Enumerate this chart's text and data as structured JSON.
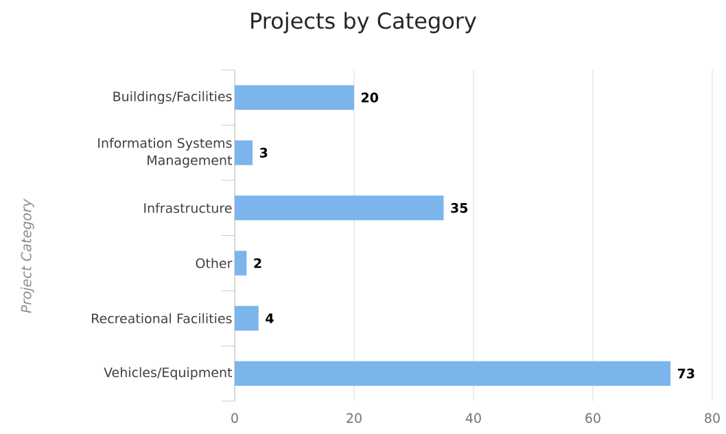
{
  "chart_data": {
    "type": "bar",
    "orientation": "horizontal",
    "title": "Projects by Category",
    "ylabel": "Project Category",
    "categories": [
      "Buildings/Facilities",
      "Information Systems Management",
      "Infrastructure",
      "Other",
      "Recreational Facilities",
      "Vehicles/Equipment"
    ],
    "values": [
      20,
      3,
      35,
      2,
      4,
      73
    ],
    "color": "#7cb5ec",
    "xlim": [
      0,
      80
    ],
    "xticks": [
      0,
      20,
      40,
      60,
      80
    ],
    "grid": "x",
    "data_labels": true
  }
}
